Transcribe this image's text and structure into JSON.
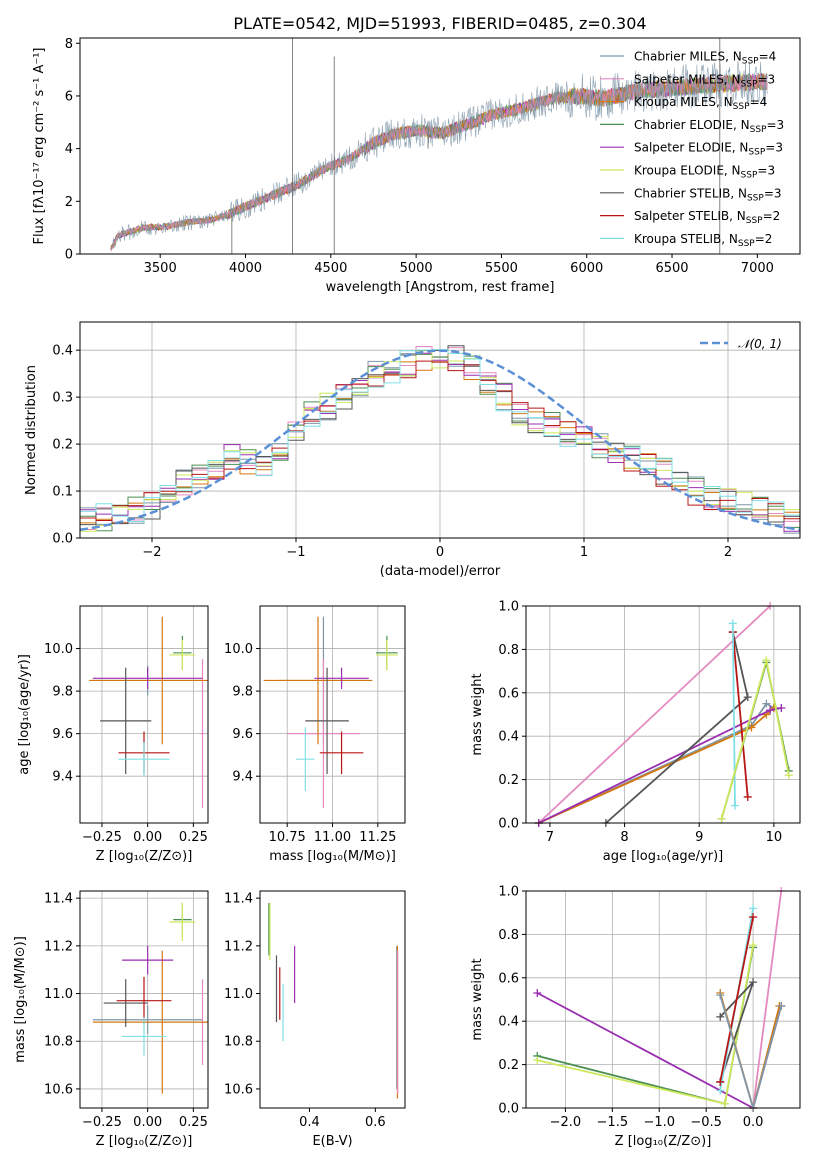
{
  "figure": {
    "title": "PLATE=0542, MJD=51993, FIBERID=0485, z=0.304"
  },
  "colors": {
    "Chabrier MILES": "#7f97a8",
    "Salpeter MILES": "#e58ac0",
    "Kroupa MILES": "#d4780e",
    "Chabrier ELODIE": "#4b8f52",
    "Salpeter ELODIE": "#9a2fb0",
    "Kroupa ELODIE": "#cde85a",
    "Chabrier STELIB": "#555555",
    "Salpeter STELIB": "#b81515",
    "Kroupa STELIB": "#80dfe6",
    "gaussian": "#5b8fd6"
  },
  "chart_data": [
    {
      "id": "spectrum",
      "type": "line",
      "title": "PLATE=0542, MJD=51993, FIBERID=0485, z=0.304",
      "xlabel": "wavelength [Angstrom, rest frame]",
      "ylabel": "Flux [fλ10⁻¹⁷ erg cm⁻² s⁻¹ A⁻¹]",
      "xlim": [
        3030,
        7250
      ],
      "ylim": [
        0,
        8.2
      ],
      "xticks": [
        "3500",
        "4000",
        "4500",
        "5000",
        "5500",
        "6000",
        "6500",
        "7000"
      ],
      "yticks": [
        "0",
        "2",
        "4",
        "6",
        "8"
      ],
      "grid": false,
      "legend_position": "bottom-right",
      "continuum_x": [
        3200,
        3250,
        3400,
        3550,
        3650,
        3800,
        3900,
        4000,
        4150,
        4300,
        4450,
        4600,
        4750,
        4850,
        5000,
        5150,
        5300,
        5450,
        5600,
        5800,
        5950,
        6100,
        6300,
        6500,
        6700,
        6900,
        7050
      ],
      "continuum_y": [
        0,
        0.7,
        1.0,
        1.05,
        1.2,
        1.3,
        1.5,
        1.8,
        2.2,
        2.6,
        3.2,
        3.6,
        4.2,
        4.5,
        4.7,
        4.6,
        4.9,
        5.3,
        5.5,
        5.9,
        6.0,
        5.9,
        6.2,
        6.3,
        6.4,
        6.5,
        6.55
      ],
      "series": [
        {
          "name": "Chabrier MILES",
          "nssp": "4"
        },
        {
          "name": "Salpeter MILES",
          "nssp": "3"
        },
        {
          "name": "Kroupa MILES",
          "nssp": "4"
        },
        {
          "name": "Chabrier ELODIE",
          "nssp": "3"
        },
        {
          "name": "Salpeter ELODIE",
          "nssp": "3"
        },
        {
          "name": "Kroupa ELODIE",
          "nssp": "3"
        },
        {
          "name": "Chabrier STELIB",
          "nssp": "3"
        },
        {
          "name": "Salpeter STELIB",
          "nssp": "2"
        },
        {
          "name": "Kroupa STELIB",
          "nssp": "2"
        }
      ]
    },
    {
      "id": "residuals",
      "type": "line",
      "xlabel": "(data-model)/error",
      "ylabel": "Normed distribution",
      "xlim": [
        -2.5,
        2.5
      ],
      "ylim": [
        0,
        0.46
      ],
      "xticks": [
        "-2",
        "-1",
        "0",
        "1",
        "2"
      ],
      "yticks": [
        "0.0",
        "0.1",
        "0.2",
        "0.3",
        "0.4"
      ],
      "grid": true,
      "legend_position": "top-right",
      "legend_label": "𝒩(0, 1)",
      "bin_edges_range": [
        -2.5,
        2.5
      ],
      "bin_count": 45,
      "base_shape": [
        0.04,
        0.045,
        0.05,
        0.06,
        0.07,
        0.09,
        0.12,
        0.13,
        0.155,
        0.17,
        0.16,
        0.15,
        0.19,
        0.23,
        0.26,
        0.28,
        0.3,
        0.33,
        0.35,
        0.36,
        0.37,
        0.38,
        0.39,
        0.38,
        0.36,
        0.33,
        0.3,
        0.27,
        0.25,
        0.24,
        0.22,
        0.21,
        0.2,
        0.19,
        0.17,
        0.16,
        0.14,
        0.12,
        0.1,
        0.09,
        0.08,
        0.07,
        0.06,
        0.05,
        0.04
      ]
    },
    {
      "id": "age-vs-Z",
      "type": "scatter",
      "xlabel": "Z [log₁₀(Z/Z⊙)]",
      "ylabel": "age  [log₁₀(age/yr)]",
      "xlim": [
        -0.37,
        0.33
      ],
      "ylim": [
        9.18,
        10.2
      ],
      "xticks": [
        -0.25,
        0.0,
        0.25
      ],
      "xtick_labels": [
        "-0.25",
        "0.00",
        "0.25"
      ],
      "yticks": [
        9.4,
        9.6,
        9.8,
        10.0
      ],
      "ytick_labels": [
        "9.4",
        "9.6",
        "9.8",
        "10.0"
      ],
      "grid": true,
      "points": [
        {
          "series": "Chabrier MILES",
          "x": 0.0,
          "xerr": 0.3,
          "y": 9.85,
          "yerr": 0.07
        },
        {
          "series": "Salpeter MILES",
          "x": 0.3,
          "xerr": 0.01,
          "y": 9.6,
          "yerr": 0.35
        },
        {
          "series": "Kroupa MILES",
          "x": 0.08,
          "xerr": 0.4,
          "y": 9.85,
          "yerr": 0.3
        },
        {
          "series": "Chabrier ELODIE",
          "x": 0.19,
          "xerr": 0.05,
          "y": 9.98,
          "yerr": 0.08
        },
        {
          "series": "Salpeter ELODIE",
          "x": 0.0,
          "xerr": 0.3,
          "y": 9.86,
          "yerr": 0.05
        },
        {
          "series": "Kroupa ELODIE",
          "x": 0.19,
          "xerr": 0.07,
          "y": 9.97,
          "yerr": 0.07
        },
        {
          "series": "Chabrier STELIB",
          "x": -0.12,
          "xerr": 0.14,
          "y": 9.66,
          "yerr": 0.25
        },
        {
          "series": "Salpeter STELIB",
          "x": -0.02,
          "xerr": 0.14,
          "y": 9.51,
          "yerr": 0.1
        },
        {
          "series": "Kroupa STELIB",
          "x": -0.02,
          "xerr": 0.14,
          "y": 9.48,
          "yerr": 0.08
        }
      ]
    },
    {
      "id": "age-vs-mass",
      "type": "scatter",
      "xlabel": "mass [log₁₀(M/M⊙)]",
      "ylabel": "",
      "xlim": [
        10.6,
        11.4
      ],
      "ylim": [
        9.18,
        10.2
      ],
      "xticks": [
        10.75,
        11.0,
        11.25
      ],
      "xtick_labels": [
        "10.75",
        "11.00",
        "11.25"
      ],
      "yticks": [
        9.4,
        9.6,
        9.8,
        10.0
      ],
      "ytick_labels": [
        "9.4",
        "9.6",
        "9.8",
        "10.0"
      ],
      "grid": true,
      "points": [
        {
          "series": "Chabrier MILES",
          "x": 10.95,
          "xerr": 0.25,
          "y": 9.85,
          "yerr": 0.3
        },
        {
          "series": "Salpeter MILES",
          "x": 10.95,
          "xerr": 0.2,
          "y": 9.6,
          "yerr": 0.35
        },
        {
          "series": "Kroupa MILES",
          "x": 10.92,
          "xerr": 0.3,
          "y": 9.85,
          "yerr": 0.3
        },
        {
          "series": "Chabrier ELODIE",
          "x": 11.3,
          "xerr": 0.06,
          "y": 9.98,
          "yerr": 0.08
        },
        {
          "series": "Salpeter ELODIE",
          "x": 11.05,
          "xerr": 0.15,
          "y": 9.86,
          "yerr": 0.05
        },
        {
          "series": "Kroupa ELODIE",
          "x": 11.3,
          "xerr": 0.06,
          "y": 9.97,
          "yerr": 0.07
        },
        {
          "series": "Chabrier STELIB",
          "x": 10.97,
          "xerr": 0.12,
          "y": 9.66,
          "yerr": 0.25
        },
        {
          "series": "Salpeter STELIB",
          "x": 11.05,
          "xerr": 0.12,
          "y": 9.51,
          "yerr": 0.1
        },
        {
          "series": "Kroupa STELIB",
          "x": 10.85,
          "xerr": 0.05,
          "y": 9.48,
          "yerr": 0.15
        }
      ]
    },
    {
      "id": "weight-vs-age",
      "type": "line",
      "xlabel": "age  [log₁₀(age/yr)]",
      "ylabel": "mass weight",
      "xlim": [
        6.68,
        10.35
      ],
      "ylim": [
        0,
        1.0
      ],
      "xticks": [
        7,
        8,
        9,
        10
      ],
      "xtick_labels": [
        "7",
        "8",
        "9",
        "10"
      ],
      "yticks": [
        0,
        0.2,
        0.4,
        0.6,
        0.8,
        1.0
      ],
      "ytick_labels": [
        "0.0",
        "0.2",
        "0.4",
        "0.6",
        "0.8",
        "1.0"
      ],
      "grid": true,
      "lines": [
        {
          "series": "Salpeter MILES",
          "x": [
            6.85,
            9.95
          ],
          "y": [
            0.0,
            1.0
          ]
        },
        {
          "series": "Chabrier MILES",
          "x": [
            6.85,
            9.7,
            9.9,
            10.0
          ],
          "y": [
            0.0,
            0.45,
            0.55,
            0.53
          ]
        },
        {
          "series": "Kroupa MILES",
          "x": [
            6.85,
            9.7,
            9.9,
            10.0
          ],
          "y": [
            0.0,
            0.44,
            0.5,
            0.53
          ]
        },
        {
          "series": "Salpeter ELODIE",
          "x": [
            6.85,
            9.95,
            10.1
          ],
          "y": [
            0.0,
            0.52,
            0.53
          ]
        },
        {
          "series": "Chabrier STELIB",
          "x": [
            7.75,
            9.65,
            9.45
          ],
          "y": [
            0.0,
            0.58,
            0.88
          ]
        },
        {
          "series": "Salpeter STELIB",
          "x": [
            9.45,
            9.65
          ],
          "y": [
            0.88,
            0.12
          ]
        },
        {
          "series": "Kroupa STELIB",
          "x": [
            9.45,
            9.48
          ],
          "y": [
            0.92,
            0.08
          ]
        },
        {
          "series": "Chabrier ELODIE",
          "x": [
            9.3,
            9.9,
            10.2
          ],
          "y": [
            0.02,
            0.74,
            0.24
          ]
        },
        {
          "series": "Kroupa ELODIE",
          "x": [
            9.3,
            9.9,
            10.2
          ],
          "y": [
            0.02,
            0.75,
            0.22
          ]
        }
      ]
    },
    {
      "id": "mass-vs-Z",
      "type": "scatter",
      "xlabel": "Z [log₁₀(Z/Z⊙)]",
      "ylabel": "mass [log₁₀(M/M⊙)]",
      "xlim": [
        -0.37,
        0.33
      ],
      "ylim": [
        10.52,
        11.43
      ],
      "xticks": [
        -0.25,
        0.0,
        0.25
      ],
      "xtick_labels": [
        "-0.25",
        "0.00",
        "0.25"
      ],
      "yticks": [
        10.6,
        10.8,
        11.0,
        11.2,
        11.4
      ],
      "ytick_labels": [
        "10.6",
        "10.8",
        "11.0",
        "11.2",
        "11.4"
      ],
      "grid": true,
      "points": [
        {
          "series": "Chabrier MILES",
          "x": 0.0,
          "xerr": 0.3,
          "y": 10.89,
          "yerr": 0.06
        },
        {
          "series": "Salpeter MILES",
          "x": 0.3,
          "xerr": 0.01,
          "y": 10.88,
          "yerr": 0.18
        },
        {
          "series": "Kroupa MILES",
          "x": 0.08,
          "xerr": 0.38,
          "y": 10.88,
          "yerr": 0.3
        },
        {
          "series": "Chabrier ELODIE",
          "x": 0.19,
          "xerr": 0.05,
          "y": 11.31,
          "yerr": 0.07
        },
        {
          "series": "Salpeter ELODIE",
          "x": 0.0,
          "xerr": 0.14,
          "y": 11.14,
          "yerr": 0.06
        },
        {
          "series": "Kroupa ELODIE",
          "x": 0.19,
          "xerr": 0.07,
          "y": 11.3,
          "yerr": 0.08
        },
        {
          "series": "Chabrier STELIB",
          "x": -0.12,
          "xerr": 0.12,
          "y": 10.96,
          "yerr": 0.1
        },
        {
          "series": "Salpeter STELIB",
          "x": -0.02,
          "xerr": 0.15,
          "y": 10.97,
          "yerr": 0.1
        },
        {
          "series": "Kroupa STELIB",
          "x": -0.02,
          "xerr": 0.12,
          "y": 10.82,
          "yerr": 0.08
        }
      ]
    },
    {
      "id": "mass-vs-EBV",
      "type": "scatter",
      "xlabel": "E(B-V)",
      "ylabel": "",
      "xlim": [
        0.25,
        0.69
      ],
      "ylim": [
        10.52,
        11.43
      ],
      "xticks": [
        0.4,
        0.6
      ],
      "xtick_labels": [
        "0.4",
        "0.6"
      ],
      "yticks": [
        10.6,
        10.8,
        11.0,
        11.2,
        11.4
      ],
      "ytick_labels": [
        "10.6",
        "10.8",
        "11.0",
        "11.2",
        "11.4"
      ],
      "grid": false,
      "points": [
        {
          "series": "Chabrier ELODIE",
          "x": 0.277,
          "xerr": 0,
          "y": 11.27,
          "yerr": 0.11
        },
        {
          "series": "Kroupa ELODIE",
          "x": 0.28,
          "xerr": 0,
          "y": 11.26,
          "yerr": 0.12
        },
        {
          "series": "Chabrier STELIB",
          "x": 0.3,
          "xerr": 0,
          "y": 11.02,
          "yerr": 0.14
        },
        {
          "series": "Salpeter STELIB",
          "x": 0.31,
          "xerr": 0,
          "y": 11.0,
          "yerr": 0.11
        },
        {
          "series": "Kroupa STELIB",
          "x": 0.32,
          "xerr": 0,
          "y": 10.92,
          "yerr": 0.12
        },
        {
          "series": "Salpeter ELODIE",
          "x": 0.355,
          "xerr": 0,
          "y": 11.08,
          "yerr": 0.12
        },
        {
          "series": "Chabrier MILES",
          "x": 0.665,
          "xerr": 0,
          "y": 10.9,
          "yerr": 0.3
        },
        {
          "series": "Kroupa MILES",
          "x": 0.667,
          "xerr": 0,
          "y": 10.88,
          "yerr": 0.32
        },
        {
          "series": "Salpeter MILES",
          "x": 0.668,
          "xerr": 0,
          "y": 10.88,
          "yerr": 0.3
        }
      ]
    },
    {
      "id": "weight-vs-Z",
      "type": "line",
      "xlabel": "Z [log₁₀(Z/Z⊙)]",
      "ylabel": "mass weight",
      "xlim": [
        -2.42,
        0.5
      ],
      "ylim": [
        0,
        1.0
      ],
      "xticks": [
        -2.0,
        -1.5,
        -1.0,
        -0.5,
        0.0
      ],
      "xtick_labels": [
        "-2.0",
        "-1.5",
        "-1.0",
        "-0.5",
        "0.0"
      ],
      "yticks": [
        0,
        0.2,
        0.4,
        0.6,
        0.8,
        1.0
      ],
      "ytick_labels": [
        "0.0",
        "0.2",
        "0.4",
        "0.6",
        "0.8",
        "1.0"
      ],
      "grid": true,
      "lines": [
        {
          "series": "Salpeter ELODIE",
          "x": [
            -2.3,
            0.0,
            0.3
          ],
          "y": [
            0.53,
            0.0,
            0.47
          ]
        },
        {
          "series": "Chabrier ELODIE",
          "x": [
            -2.3,
            -0.3,
            0.0
          ],
          "y": [
            0.24,
            0.02,
            0.74
          ]
        },
        {
          "series": "Kroupa ELODIE",
          "x": [
            -2.3,
            -0.3,
            0.0
          ],
          "y": [
            0.22,
            0.02,
            0.75
          ]
        },
        {
          "series": "Salpeter MILES",
          "x": [
            0.0,
            0.3
          ],
          "y": [
            0.0,
            1.0
          ]
        },
        {
          "series": "Chabrier STELIB",
          "x": [
            -0.35,
            0.0,
            -0.35
          ],
          "y": [
            0.42,
            0.58,
            0.12
          ]
        },
        {
          "series": "Kroupa STELIB",
          "x": [
            -0.35,
            0.0
          ],
          "y": [
            0.08,
            0.92
          ]
        },
        {
          "series": "Salpeter STELIB",
          "x": [
            -0.35,
            0.0
          ],
          "y": [
            0.12,
            0.88
          ]
        },
        {
          "series": "Kroupa MILES",
          "x": [
            -0.35,
            0.0,
            0.28
          ],
          "y": [
            0.53,
            0.0,
            0.47
          ]
        },
        {
          "series": "Chabrier MILES",
          "x": [
            -0.35,
            0.0,
            0.3
          ],
          "y": [
            0.52,
            0.0,
            0.47
          ]
        }
      ]
    }
  ]
}
